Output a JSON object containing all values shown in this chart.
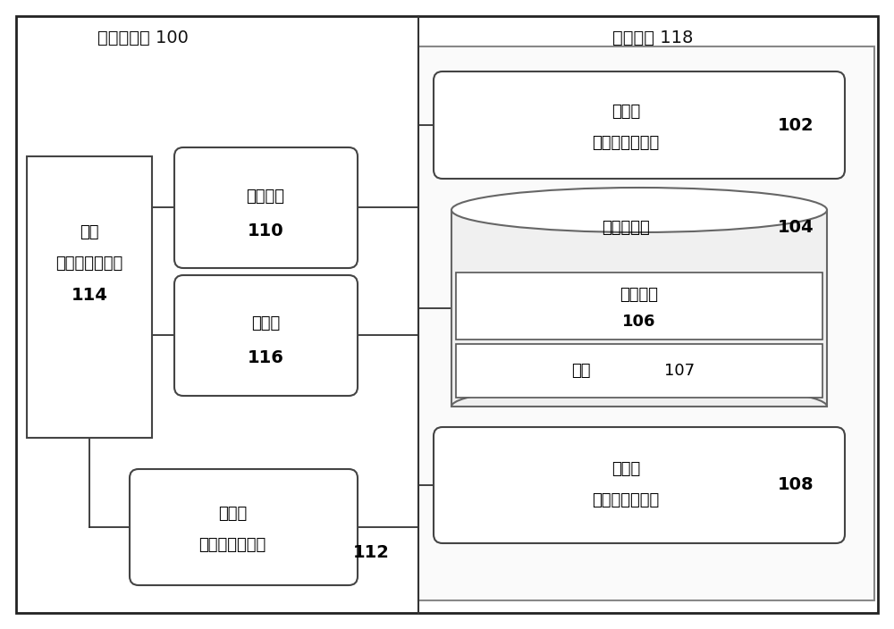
{
  "bg_color": "#ffffff",
  "title_robot": "机器人系统 100",
  "title_control": "控制系统 118",
  "power_line1": "电源",
  "power_line2": "（一个或多个）",
  "power_line3": "114",
  "mech_line1": "机械部件",
  "mech_line2": "110",
  "elec_line1": "电部件",
  "elec_line2": "116",
  "sensor_line1": "传感器",
  "sensor_line2": "（一个或多个）",
  "sensor_line3": "112",
  "proc_line1": "处理器",
  "proc_line2": "（一个或多个）",
  "proc_num": "102",
  "data_storage_line1": "数据存储器",
  "data_storage_num": "104",
  "prog_line1": "程序指令",
  "prog_line2": "106",
  "data_line1": "数据",
  "data_num": "107",
  "ctrl_line1": "控制器",
  "ctrl_line2": "（一个或多个）",
  "ctrl_num": "108"
}
